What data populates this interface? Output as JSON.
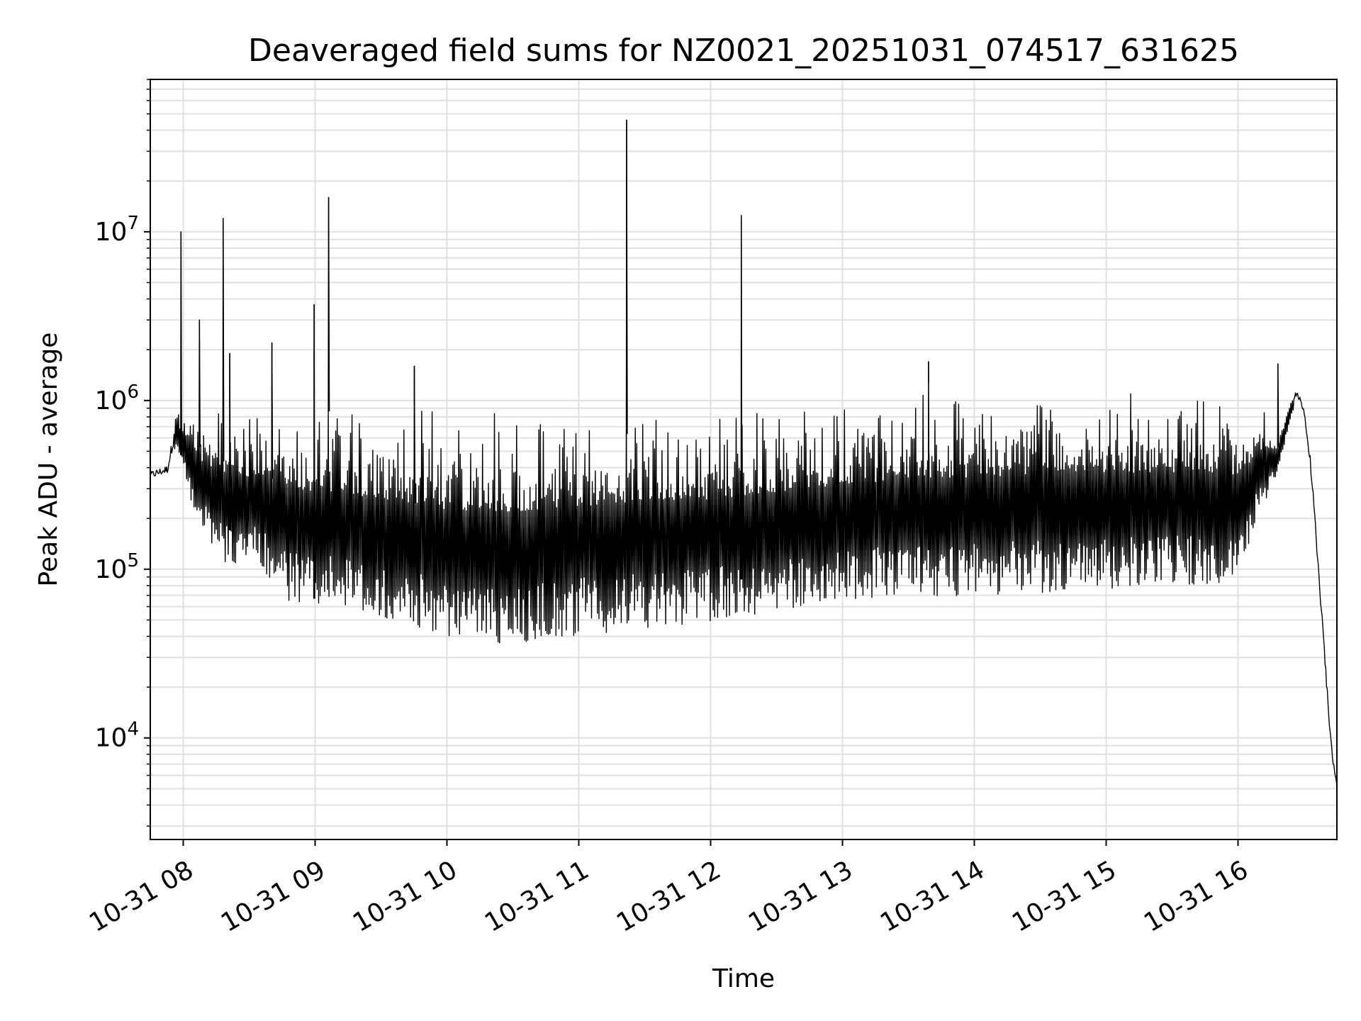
{
  "chart_data": {
    "type": "line",
    "title": "Deaveraged field sums for NZ0021_20251031_074517_631625",
    "xlabel": "Time",
    "ylabel": "Peak ADU - average",
    "yscale": "log",
    "xlim_hours": [
      7.75,
      16.75
    ],
    "ylim": [
      2500,
      80000000
    ],
    "grid": true,
    "grid_minor": true,
    "colors": {
      "line": "#000000",
      "grid": "#e0e0e0",
      "axes": "#000000"
    },
    "x_ticks": [
      {
        "hour": 8,
        "label": "10-31 08"
      },
      {
        "hour": 9,
        "label": "10-31 09"
      },
      {
        "hour": 10,
        "label": "10-31 10"
      },
      {
        "hour": 11,
        "label": "10-31 11"
      },
      {
        "hour": 12,
        "label": "10-31 12"
      },
      {
        "hour": 13,
        "label": "10-31 13"
      },
      {
        "hour": 14,
        "label": "10-31 14"
      },
      {
        "hour": 15,
        "label": "10-31 15"
      },
      {
        "hour": 16,
        "label": "10-31 16"
      }
    ],
    "y_ticks": [
      {
        "value": 10000,
        "base": "10",
        "exp": "4"
      },
      {
        "value": 100000,
        "base": "10",
        "exp": "5"
      },
      {
        "value": 1000000,
        "base": "10",
        "exp": "6"
      },
      {
        "value": 10000000,
        "base": "10",
        "exp": "7"
      }
    ],
    "series": [
      {
        "name": "Peak ADU - average",
        "envelope_points": [
          {
            "t": 7.75,
            "low": 300000,
            "high": 420000
          },
          {
            "t": 7.88,
            "low": 320000,
            "high": 460000
          },
          {
            "t": 7.95,
            "low": 500000,
            "high": 1000000
          },
          {
            "t": 8.1,
            "low": 200000,
            "high": 900000
          },
          {
            "t": 8.3,
            "low": 110000,
            "high": 900000
          },
          {
            "t": 8.6,
            "low": 100000,
            "high": 1000000
          },
          {
            "t": 8.8,
            "low": 65000,
            "high": 1000000
          },
          {
            "t": 9.2,
            "low": 60000,
            "high": 1000000
          },
          {
            "t": 9.6,
            "low": 50000,
            "high": 950000
          },
          {
            "t": 10.0,
            "low": 38000,
            "high": 950000
          },
          {
            "t": 10.5,
            "low": 36000,
            "high": 950000
          },
          {
            "t": 11.0,
            "low": 40000,
            "high": 1000000
          },
          {
            "t": 11.5,
            "low": 45000,
            "high": 1000000
          },
          {
            "t": 12.0,
            "low": 48000,
            "high": 1000000
          },
          {
            "t": 12.5,
            "low": 55000,
            "high": 1100000
          },
          {
            "t": 13.0,
            "low": 62000,
            "high": 1200000
          },
          {
            "t": 13.5,
            "low": 68000,
            "high": 1250000
          },
          {
            "t": 14.0,
            "low": 70000,
            "high": 1300000
          },
          {
            "t": 14.5,
            "low": 72000,
            "high": 1350000
          },
          {
            "t": 15.0,
            "low": 75000,
            "high": 1350000
          },
          {
            "t": 15.5,
            "low": 78000,
            "high": 1350000
          },
          {
            "t": 16.0,
            "low": 80000,
            "high": 1200000
          },
          {
            "t": 16.15,
            "low": 200000,
            "high": 1000000
          },
          {
            "t": 16.3,
            "low": 350000,
            "high": 700000
          },
          {
            "t": 16.4,
            "low": 800000,
            "high": 1100000
          },
          {
            "t": 16.45,
            "low": 900000,
            "high": 1300000
          },
          {
            "t": 16.5,
            "low": 800000,
            "high": 950000
          },
          {
            "t": 16.55,
            "low": 300000,
            "high": 600000
          },
          {
            "t": 16.6,
            "low": 100000,
            "high": 150000
          },
          {
            "t": 16.65,
            "low": 30000,
            "high": 45000
          },
          {
            "t": 16.7,
            "low": 8000,
            "high": 12000
          },
          {
            "t": 16.75,
            "low": 4000,
            "high": 6000
          }
        ],
        "spikes": [
          {
            "t": 7.98,
            "value": 10000000
          },
          {
            "t": 8.12,
            "value": 3000000
          },
          {
            "t": 8.3,
            "value": 12000000
          },
          {
            "t": 8.35,
            "value": 1900000
          },
          {
            "t": 8.67,
            "value": 2200000
          },
          {
            "t": 8.99,
            "value": 3700000
          },
          {
            "t": 9.1,
            "value": 16000000
          },
          {
            "t": 9.75,
            "value": 1600000
          },
          {
            "t": 11.36,
            "value": 46000000
          },
          {
            "t": 12.23,
            "value": 12500000
          },
          {
            "t": 13.65,
            "value": 1700000
          },
          {
            "t": 16.3,
            "value": 1650000
          }
        ]
      }
    ]
  }
}
